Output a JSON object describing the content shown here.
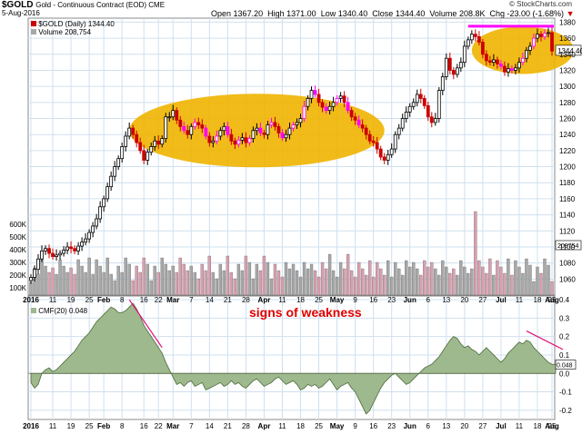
{
  "header": {
    "symbol": "$GOLD",
    "description": "Gold - Continuous Contract (EOD) CME",
    "date": "5-Aug-2016",
    "open_label": "Open",
    "open": "1367.20",
    "high_label": "High",
    "high": "1371.00",
    "low_label": "Low",
    "low": "1340.40",
    "close_label": "Close",
    "close": "1344.40",
    "volume_label": "Volume",
    "volume": "208.8K",
    "chg_label": "Chg",
    "chg": "-23.00 (-1.68%)",
    "chg_arrow": "▼",
    "brand": "© StockCharts.com"
  },
  "legend": {
    "price": "$GOLD (Daily) 1344.40",
    "volume": "Volume 208,754",
    "cmf": "CMF(20) 0.048"
  },
  "annotations": {
    "weakness": "signs of weakness"
  },
  "colors": {
    "up": "#000000",
    "down": "#cc0000",
    "highlight": "#ff00ff",
    "ellipse": "#f0b400",
    "cmf_fill": "#9fb98e",
    "volume_up": "#a8a8a8",
    "volume_down": "#d9a0b0",
    "trendline": "#e0107a"
  },
  "chart_data": [
    {
      "type": "line",
      "name": "price",
      "title": "$GOLD (Daily) 1344.40",
      "y_ticks": [
        1060,
        1080,
        1100,
        1120,
        1140,
        1160,
        1180,
        1200,
        1220,
        1240,
        1260,
        1280,
        1300,
        1320,
        1340,
        1360,
        1380
      ],
      "ylim": [
        1040,
        1385
      ],
      "last_value_label": "1344.40",
      "volume_last_label": "208754",
      "x_tick_labels": [
        "2016",
        "11",
        "19",
        "25",
        "Feb",
        "8",
        "16",
        "22",
        "Mar",
        "7",
        "14",
        "21",
        "28",
        "Apr",
        "11",
        "18",
        "25",
        "May",
        "9",
        "16",
        "23",
        "Jun",
        "6",
        "13",
        "20",
        "27",
        "Jul",
        "11",
        "18",
        "25",
        "Aug"
      ],
      "volume_ticks": [
        "100K",
        "200K",
        "300K",
        "400K",
        "500K",
        "600K"
      ],
      "highlight_levels": [
        1375
      ],
      "x_index_ticks": [
        0,
        6,
        11,
        16,
        20,
        25,
        31,
        35,
        39,
        44,
        49,
        54,
        59,
        64,
        69,
        74,
        79,
        84,
        89,
        94,
        99,
        104,
        109,
        114,
        119,
        124,
        129,
        134,
        139,
        144,
        149
      ],
      "close": [
        1062,
        1072,
        1085,
        1095,
        1098,
        1092,
        1088,
        1090,
        1092,
        1096,
        1100,
        1098,
        1095,
        1101,
        1106,
        1110,
        1118,
        1126,
        1135,
        1150,
        1160,
        1175,
        1188,
        1200,
        1210,
        1225,
        1238,
        1248,
        1240,
        1230,
        1220,
        1208,
        1218,
        1225,
        1232,
        1228,
        1235,
        1262,
        1262,
        1270,
        1258,
        1250,
        1245,
        1240,
        1250,
        1255,
        1252,
        1248,
        1238,
        1230,
        1232,
        1238,
        1245,
        1250,
        1240,
        1232,
        1228,
        1233,
        1236,
        1230,
        1235,
        1245,
        1248,
        1242,
        1240,
        1252,
        1255,
        1250,
        1242,
        1236,
        1240,
        1248,
        1252,
        1255,
        1260,
        1275,
        1285,
        1295,
        1290,
        1280,
        1274,
        1270,
        1275,
        1280,
        1285,
        1288,
        1280,
        1270,
        1262,
        1258,
        1252,
        1248,
        1240,
        1232,
        1230,
        1222,
        1212,
        1208,
        1215,
        1222,
        1240,
        1248,
        1260,
        1268,
        1275,
        1280,
        1290,
        1285,
        1276,
        1262,
        1255,
        1260,
        1295,
        1312,
        1335,
        1320,
        1315,
        1323,
        1330,
        1350,
        1358,
        1365,
        1362,
        1355,
        1340,
        1332,
        1330,
        1333,
        1328,
        1325,
        1318,
        1322,
        1320,
        1323,
        1330,
        1335,
        1345,
        1350,
        1360,
        1365,
        1362,
        1366,
        1367,
        1344
      ]
    },
    {
      "type": "area",
      "name": "CMF(20)",
      "title": "CMF(20) 0.048",
      "y_ticks": [
        -0.2,
        -0.1,
        0.0,
        0.1,
        0.2,
        0.3,
        0.4
      ],
      "ylim": [
        -0.25,
        0.42
      ],
      "last_value_label": "0.048",
      "values": [
        -0.05,
        -0.08,
        -0.06,
        0.0,
        0.02,
        0.03,
        0.01,
        0.02,
        0.04,
        0.06,
        0.08,
        0.1,
        0.12,
        0.15,
        0.18,
        0.2,
        0.22,
        0.25,
        0.28,
        0.3,
        0.32,
        0.34,
        0.36,
        0.35,
        0.33,
        0.33,
        0.34,
        0.36,
        0.38,
        0.35,
        0.31,
        0.26,
        0.23,
        0.2,
        0.17,
        0.14,
        0.11,
        0.06,
        0.02,
        -0.02,
        -0.06,
        -0.05,
        -0.07,
        -0.05,
        -0.04,
        -0.07,
        -0.06,
        -0.05,
        -0.09,
        -0.08,
        -0.07,
        -0.06,
        -0.05,
        -0.07,
        -0.06,
        -0.04,
        -0.06,
        -0.05,
        -0.07,
        -0.08,
        -0.06,
        -0.04,
        -0.03,
        -0.05,
        -0.07,
        -0.06,
        -0.05,
        -0.03,
        -0.02,
        -0.04,
        -0.06,
        -0.05,
        -0.04,
        -0.06,
        -0.09,
        -0.08,
        -0.06,
        -0.07,
        -0.06,
        -0.08,
        -0.07,
        -0.05,
        -0.03,
        -0.06,
        -0.09,
        -0.07,
        -0.06,
        -0.05,
        -0.08,
        -0.1,
        -0.14,
        -0.18,
        -0.22,
        -0.2,
        -0.16,
        -0.12,
        -0.08,
        -0.05,
        -0.03,
        -0.01,
        0.0,
        -0.02,
        -0.04,
        -0.06,
        -0.05,
        -0.03,
        -0.01,
        0.01,
        0.03,
        0.04,
        0.05,
        0.07,
        0.09,
        0.12,
        0.15,
        0.18,
        0.2,
        0.19,
        0.16,
        0.14,
        0.15,
        0.13,
        0.12,
        0.1,
        0.12,
        0.14,
        0.12,
        0.1,
        0.08,
        0.06,
        0.08,
        0.11,
        0.13,
        0.15,
        0.17,
        0.16,
        0.18,
        0.17,
        0.14,
        0.12,
        0.1,
        0.08,
        0.06,
        0.05,
        0.048
      ],
      "x_tick_labels": [
        "2016",
        "11",
        "19",
        "25",
        "Feb",
        "8",
        "16",
        "22",
        "Mar",
        "7",
        "14",
        "21",
        "28",
        "Apr",
        "11",
        "18",
        "25",
        "May",
        "9",
        "16",
        "23",
        "Jun",
        "6",
        "13",
        "20",
        "27",
        "Jul",
        "11",
        "18",
        "25",
        "Aug"
      ]
    }
  ]
}
